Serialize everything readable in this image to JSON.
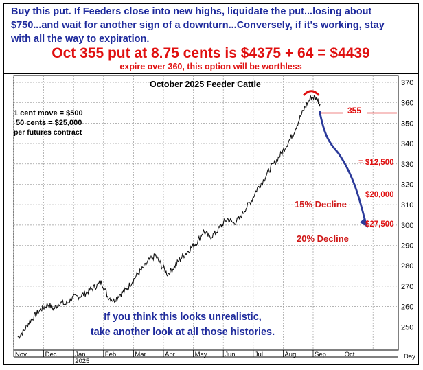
{
  "header": {
    "line1": "Buy this put. If Feeders close into new highs, liquidate the put...losing about",
    "line2": "$750...and wait for another sign of a downturn...Conversely, if it's working, stay",
    "line3": "with all the way to expiration.",
    "headline": "Oct 355 put at 8.75 cents is $4375 + 64 = $4439",
    "subhead": "expire over 360, this option will be worthless"
  },
  "annotations": {
    "contract_note": [
      "1 cent move = $500",
      " 50 cents = $25,000",
      "per futures contract"
    ],
    "strike_label": "355",
    "gain1": "= $12,500",
    "gain2": "$20,000",
    "gain3": "$27,500",
    "decline1": "15% Decline",
    "decline2": "20% Decline",
    "footer_line1": "If you think this looks unrealistic,",
    "footer_line2": "take another look at all those histories."
  },
  "colors": {
    "headline_red": "#e01010",
    "text_blue": "#1e2a9c",
    "arrow_blue": "#2b3a9a",
    "price_line": "#111111",
    "grid": "#9a9a9a"
  },
  "chart_data": {
    "type": "line",
    "title": "October 2025 Feeder Cattle",
    "x_tick_labels": [
      "Nov",
      "Dec",
      "Jan",
      "Feb",
      "Mar",
      "Apr",
      "May",
      "Jun",
      "Jul",
      "Aug",
      "Sep",
      "Oct"
    ],
    "year_label": "2025",
    "x_end_label": "Day",
    "ylim": [
      240,
      370
    ],
    "y_ticks": [
      250,
      260,
      270,
      280,
      290,
      300,
      310,
      320,
      330,
      340,
      350,
      360,
      370
    ],
    "grid": true,
    "x_unit": "months from Nov 2024",
    "series": [
      {
        "values": [
          [
            0.0,
            245
          ],
          [
            0.2,
            248
          ],
          [
            0.4,
            253
          ],
          [
            0.6,
            256
          ],
          [
            0.8,
            259
          ],
          [
            1.0,
            261
          ],
          [
            1.2,
            259
          ],
          [
            1.4,
            262
          ],
          [
            1.6,
            261
          ],
          [
            1.8,
            264
          ],
          [
            2.0,
            265
          ],
          [
            2.2,
            266
          ],
          [
            2.4,
            268
          ],
          [
            2.6,
            270
          ],
          [
            2.8,
            272
          ],
          [
            3.0,
            265
          ],
          [
            3.2,
            263
          ],
          [
            3.4,
            266
          ],
          [
            3.6,
            268
          ],
          [
            3.8,
            272
          ],
          [
            4.0,
            276
          ],
          [
            4.2,
            279
          ],
          [
            4.4,
            283
          ],
          [
            4.6,
            285
          ],
          [
            4.8,
            280
          ],
          [
            5.0,
            276
          ],
          [
            5.2,
            279
          ],
          [
            5.4,
            283
          ],
          [
            5.6,
            286
          ],
          [
            5.8,
            289
          ],
          [
            6.0,
            292
          ],
          [
            6.2,
            297
          ],
          [
            6.4,
            294
          ],
          [
            6.6,
            296
          ],
          [
            6.8,
            300
          ],
          [
            7.0,
            303
          ],
          [
            7.2,
            301
          ],
          [
            7.4,
            303
          ],
          [
            7.6,
            308
          ],
          [
            7.8,
            312
          ],
          [
            8.0,
            318
          ],
          [
            8.2,
            322
          ],
          [
            8.4,
            327
          ],
          [
            8.6,
            331
          ],
          [
            8.8,
            335
          ],
          [
            9.0,
            340
          ],
          [
            9.2,
            345
          ],
          [
            9.4,
            352
          ],
          [
            9.6,
            358
          ],
          [
            9.8,
            363
          ],
          [
            10.0,
            362
          ],
          [
            10.1,
            359
          ]
        ]
      }
    ]
  }
}
